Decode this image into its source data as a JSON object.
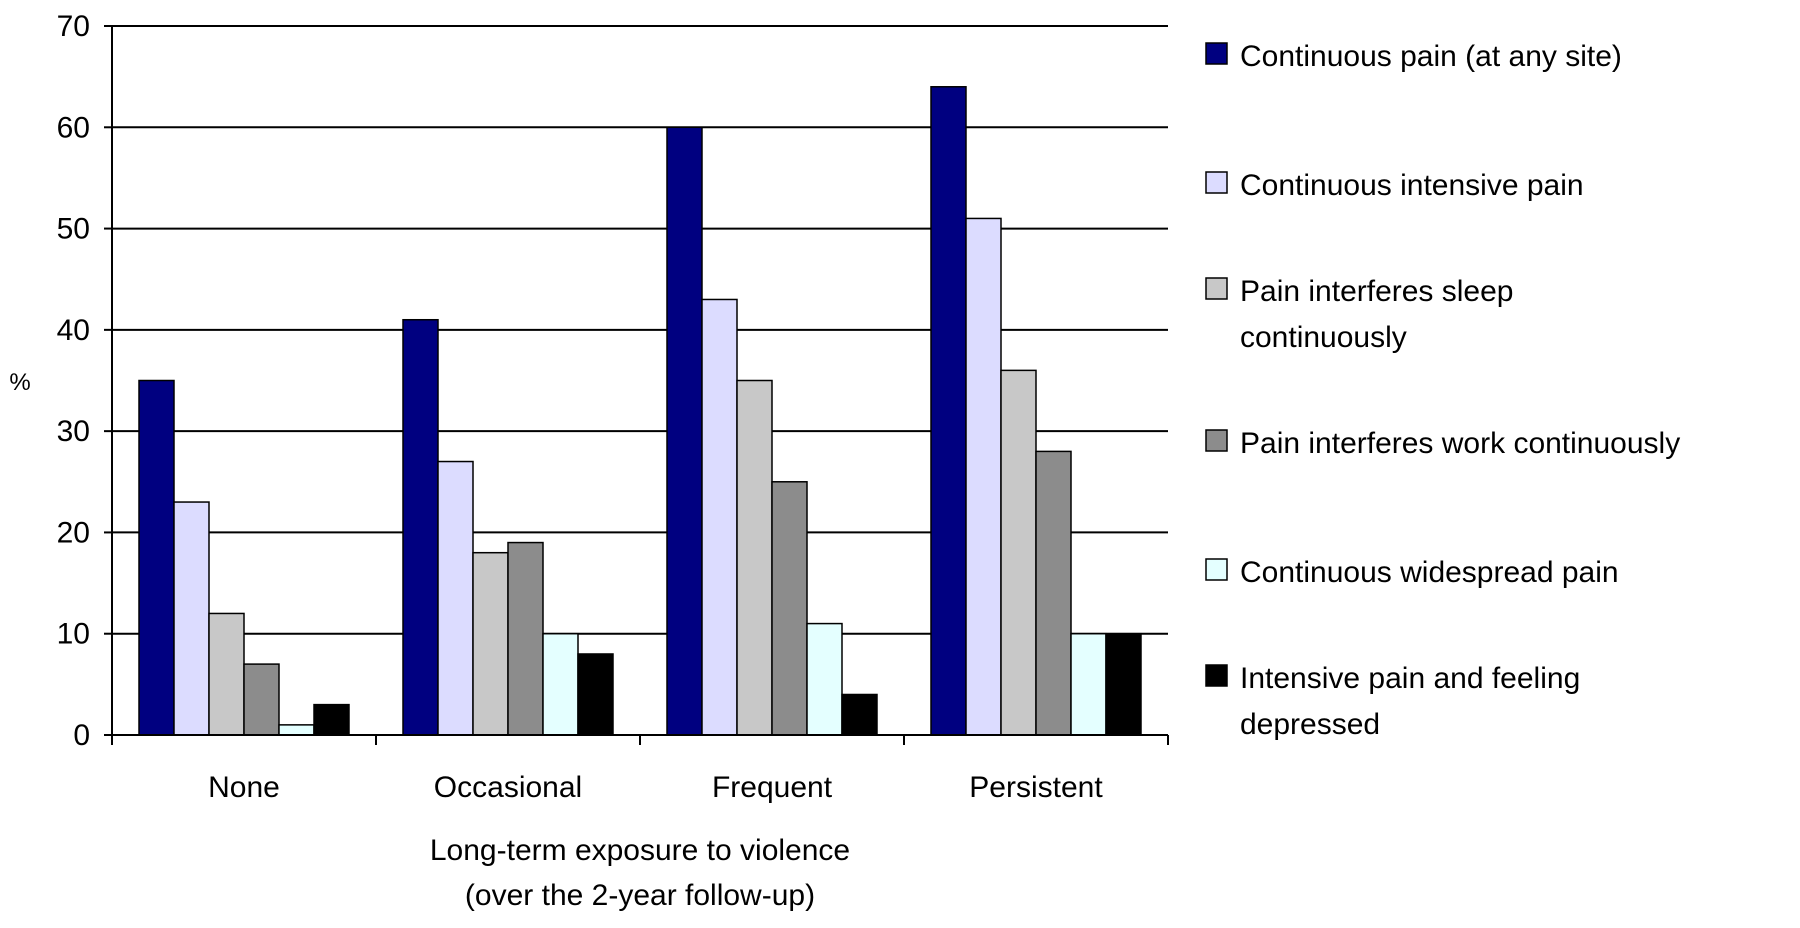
{
  "chart_data": {
    "type": "bar",
    "title": "",
    "ylabel": "%",
    "xlabel_lines": [
      "Long-term exposure to violence",
      "(over the 2-year follow-up)"
    ],
    "ylim": [
      0,
      70
    ],
    "yticks": [
      0,
      10,
      20,
      30,
      40,
      50,
      60,
      70
    ],
    "grid": true,
    "legend_position": "right",
    "categories": [
      "None",
      "Occasional",
      "Frequent",
      "Persistent"
    ],
    "series": [
      {
        "name": "Continuous pain (at any site)",
        "legend_lines": [
          "Continuous pain (at any site)"
        ],
        "color": "#000080",
        "values": [
          35,
          41,
          60,
          64
        ]
      },
      {
        "name": "Continuous intensive pain",
        "legend_lines": [
          "Continuous intensive pain"
        ],
        "color": "#dcdcff",
        "values": [
          23,
          27,
          43,
          51
        ]
      },
      {
        "name": "Pain interferes sleep continuously",
        "legend_lines": [
          "Pain interferes sleep",
          "continuously"
        ],
        "color": "#c8c8c8",
        "values": [
          12,
          18,
          35,
          36
        ]
      },
      {
        "name": "Pain interferes work continuously",
        "legend_lines": [
          "Pain interferes work continuously"
        ],
        "color": "#8c8c8c",
        "values": [
          7,
          19,
          25,
          28
        ]
      },
      {
        "name": "Continuous widespread pain",
        "legend_lines": [
          "Continuous widespread pain"
        ],
        "color": "#e4ffff",
        "values": [
          1,
          10,
          11,
          10
        ]
      },
      {
        "name": "Intensive pain and feeling depressed",
        "legend_lines": [
          "Intensive pain and feeling",
          "depressed"
        ],
        "color": "#000000",
        "values": [
          3,
          8,
          4,
          10
        ]
      }
    ]
  }
}
